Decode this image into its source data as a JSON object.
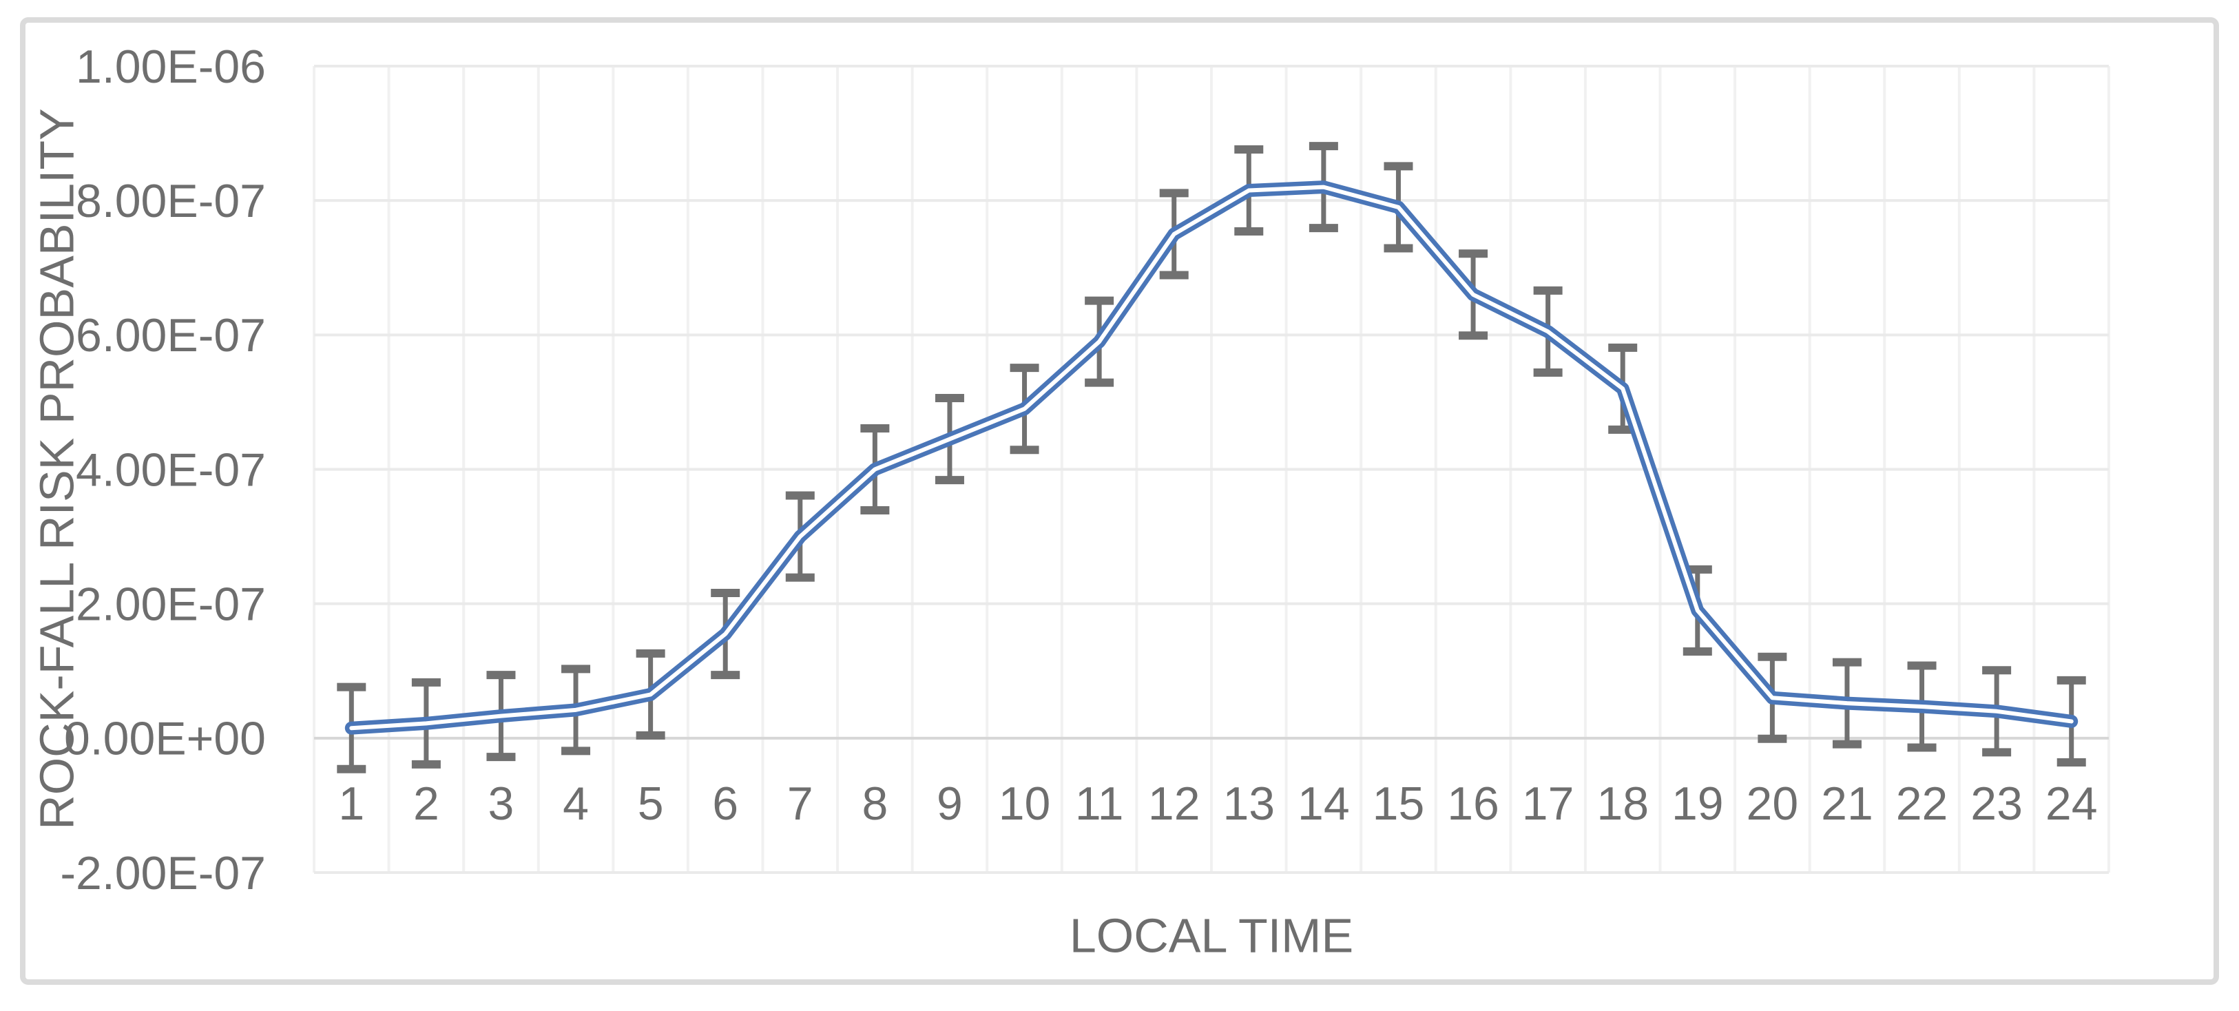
{
  "chart_data": {
    "type": "line",
    "title": "",
    "xlabel": "LOCAL TIME",
    "ylabel": "ROCK-FALL RISK PROBABILITY",
    "categories": [
      1,
      2,
      3,
      4,
      5,
      6,
      7,
      8,
      9,
      10,
      11,
      12,
      13,
      14,
      15,
      16,
      17,
      18,
      19,
      20,
      21,
      22,
      23,
      24
    ],
    "series": [
      {
        "name": "Rock-fall risk probability",
        "values": [
          1.5e-08,
          2.2e-08,
          3.3e-08,
          4.2e-08,
          6.5e-08,
          1.55e-07,
          3e-07,
          4e-07,
          4.45e-07,
          4.9e-07,
          5.9e-07,
          7.5e-07,
          8.15e-07,
          8.2e-07,
          7.9e-07,
          6.6e-07,
          6.05e-07,
          5.2e-07,
          1.9e-07,
          6e-08,
          5.2e-08,
          4.7e-08,
          4e-08,
          2.5e-08
        ]
      }
    ],
    "error_bars": {
      "type": "symmetric",
      "value": 6.1e-08
    },
    "y_axis": {
      "min": -2e-07,
      "max": 1e-06,
      "tick_interval": 2e-07,
      "ticks": [
        {
          "value": 1e-06,
          "label": "1.00E-06"
        },
        {
          "value": 8e-07,
          "label": "8.00E-07"
        },
        {
          "value": 6e-07,
          "label": "6.00E-07"
        },
        {
          "value": 4e-07,
          "label": "4.00E-07"
        },
        {
          "value": 2e-07,
          "label": "2.00E-07"
        },
        {
          "value": 0,
          "label": "0.00E+00"
        },
        {
          "value": -2e-07,
          "label": "-2.00E-07"
        }
      ]
    },
    "grid": true,
    "legend": false,
    "line_style": "double",
    "colors": {
      "line": "#4A76B8",
      "line_core": "#FFFFFF",
      "error_bar": "#717171",
      "gridline_h": "#EAEAEA",
      "gridline_v": "#F1F1F1",
      "zero_line": "#D6D6D6",
      "text": "#6E6E6E",
      "border": "#DBDBDB",
      "background": "#FFFFFF"
    }
  }
}
